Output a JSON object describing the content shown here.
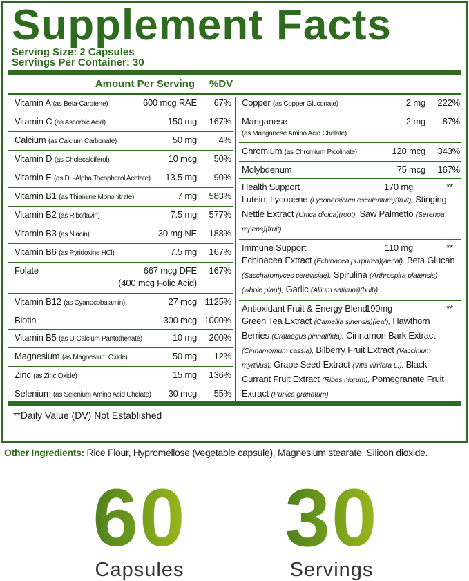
{
  "title": "Supplement Facts",
  "serving_size": "Serving Size: 2 Capsules",
  "servings_per_container": "Servings Per Container: 30",
  "header": {
    "amount": "Amount Per Serving",
    "dv": "%DV"
  },
  "left": [
    {
      "name": "Vitamin A",
      "sub": "(as Beta-Carotene)",
      "amount": "600 mcg RAE",
      "dv": "67%"
    },
    {
      "name": "Vitamin C",
      "sub": "(as Ascorbic Acid)",
      "amount": "150 mg",
      "dv": "167%"
    },
    {
      "name": "Calcium",
      "sub": "(as Calcium Carbonate)",
      "amount": "50 mg",
      "dv": "4%"
    },
    {
      "name": "Vitamin D",
      "sub": "(as Cholecalciferol)",
      "amount": "10 mcg",
      "dv": "50%"
    },
    {
      "name": "Vitamin E",
      "sub": "(as DL-Alpha Tocopherol Acetate)",
      "amount": "13.5 mg",
      "dv": "90%"
    },
    {
      "name": "Vitamin B1",
      "sub": "(as Thiamine Mononitrate)",
      "amount": "7 mg",
      "dv": "583%"
    },
    {
      "name": "Vitamin B2",
      "sub": "(as Riboflavin)",
      "amount": "7.5 mg",
      "dv": "577%"
    },
    {
      "name": "Vitamin B3",
      "sub": "(as Niacin)",
      "amount": "30 mg NE",
      "dv": "188%"
    },
    {
      "name": "Vitamin B6",
      "sub": "(as Pyridoxine HCl)",
      "amount": "7.5 mg",
      "dv": "167%"
    },
    {
      "name": "Folate",
      "amount": "667 mcg DFE",
      "amount_note": "(400 mcg Folic Acid)",
      "dv": "167%"
    },
    {
      "name": "Vitamin B12",
      "sub": "(as Cyanocobalamin)",
      "amount": "27 mcg",
      "dv": "1125%"
    },
    {
      "name": "Biotin",
      "amount": "300 mcg",
      "dv": "1000%"
    },
    {
      "name": "Vitamin B5",
      "sub": "(as D-Calcium Pantothenate)",
      "amount": "10 mg",
      "dv": "200%"
    },
    {
      "name": "Magnesium",
      "sub": "(as Magnesium Oxide)",
      "amount": "50 mg",
      "dv": "12%"
    },
    {
      "name": "Zinc",
      "sub": "(as Zinc Oxide)",
      "amount": "15 mg",
      "dv": "136%"
    },
    {
      "name": "Selenium",
      "sub": "(as Selenium Amino Acid Chelate)",
      "amount": "30 mcg",
      "dv": "55%"
    }
  ],
  "right": [
    {
      "name": "Copper",
      "sub": "(as Copper Gluconate)",
      "amount": "2 mg",
      "dv": "222%"
    },
    {
      "name": "Manganese",
      "sub_below": "(as Manganese Amino Acid Chelate)",
      "amount": "2 mg",
      "dv": "87%"
    },
    {
      "name": "Chromium",
      "sub": "(as Chromium Picolinate)",
      "amount": "120 mcg",
      "dv": "343%"
    },
    {
      "name": "Molybdenum",
      "amount": "75 mcg",
      "dv": "167%"
    }
  ],
  "blends": [
    {
      "name": "Health Support",
      "amount": "170 mg",
      "dv": "**",
      "ingredients": [
        {
          "name": "Lutein, Lycopene",
          "source": "(Lycopersicum esculentum)(fruit),"
        },
        {
          "name": "Stinging Nettle Extract",
          "source": "(Urtica dioica)(root),"
        },
        {
          "name": "Saw Palmetto",
          "source": "(Serenoa repens)(fruit)"
        }
      ]
    },
    {
      "name": "Immune Support",
      "amount": "110 mg",
      "dv": "**",
      "ingredients": [
        {
          "name": "Echinacea Extract",
          "source": "(Echinacea purpurea)(aerial),"
        },
        {
          "name": "Beta Glucan",
          "source": "(Saccharomyces cerevisiae),"
        },
        {
          "name": "Spirulina",
          "source": "(Arthrospira platensis)(whole plant),"
        },
        {
          "name": "Garlic",
          "source": "(Allium sativum)(bulb)"
        }
      ]
    },
    {
      "name": "Antioxidant Fruit & Energy Blend",
      "amount": "190mg",
      "dv": "**",
      "ingredients": [
        {
          "name": "Green Tea Extract",
          "source": "(Camellia sinensis)(leaf),"
        },
        {
          "name": "Hawthorn Berries",
          "source": "(Crataegus pinnatifida),"
        },
        {
          "name": "Cinnamon Bark Extract",
          "source": "(Cinnamomum cassia),"
        },
        {
          "name": "Bilberry Fruit Extract",
          "source": "(Vaccinium myrtillus),"
        },
        {
          "name": "Grape Seed Extract",
          "source": "(Vitis vinifera L.),"
        },
        {
          "name": "Black Currant Fruit Extract",
          "source": "(Ribes nigrum),"
        },
        {
          "name": "Pomegranate Fruit Extract",
          "source": "(Punica granatum)"
        }
      ]
    }
  ],
  "footnote": "**Daily Value (DV) Not Established",
  "other_ingredients": {
    "label": "Other Ingredients:",
    "text": "Rice Flour, Hypromellose (vegetable capsule), Magnesium stearate, Silicon dioxide."
  },
  "counts": [
    {
      "number": "60",
      "label": "Capsules"
    },
    {
      "number": "30",
      "label": "Servings"
    }
  ]
}
